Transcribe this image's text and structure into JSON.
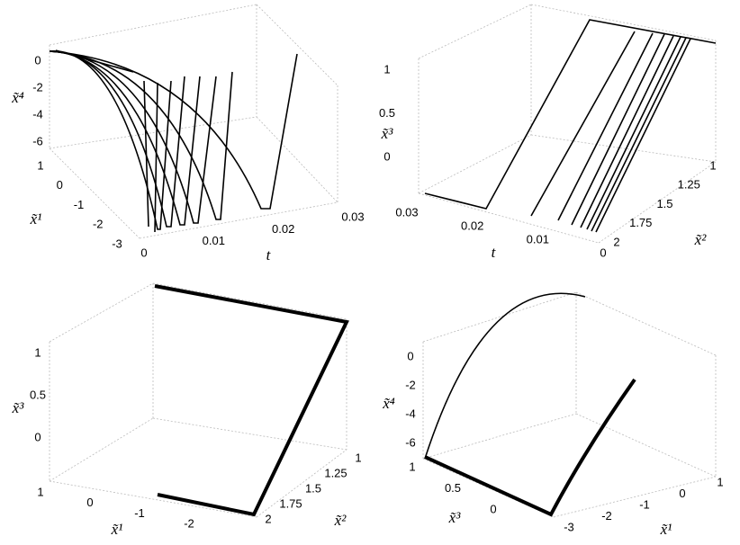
{
  "chart_data": [
    {
      "type": "line3d",
      "xlabel": "t",
      "xticks": [
        0,
        0.01,
        0.02,
        0.03
      ],
      "ylabel": "x̃¹",
      "yticks": [
        1,
        0,
        -1,
        -2,
        -3
      ],
      "zlabel": "x̃⁴",
      "zticks": [
        0,
        -2,
        -4,
        -6
      ]
    },
    {
      "type": "line3d",
      "xlabel": "t",
      "xticks": [
        0.03,
        0.02,
        0.01,
        0
      ],
      "ylabel": "x̃²",
      "yticks": [
        1,
        1.25,
        1.5,
        1.75,
        2
      ],
      "zlabel": "x̃³",
      "zticks": [
        1,
        0.5,
        0
      ]
    },
    {
      "type": "line3d",
      "xlabel": "x̃¹",
      "xticks": [
        1,
        0,
        -1,
        -2
      ],
      "ylabel": "x̃²",
      "yticks": [
        1,
        1.25,
        1.5,
        1.75,
        2
      ],
      "zlabel": "x̃³",
      "zticks": [
        1,
        0.5,
        0
      ]
    },
    {
      "type": "line3d",
      "xlabel": "x̃³",
      "xticks": [
        1,
        0.5,
        0
      ],
      "ylabel": "x̃¹",
      "yticks": [
        -3,
        -2,
        -1,
        0,
        1
      ],
      "zlabel": "x̃⁴",
      "zticks": [
        0,
        -2,
        -4,
        -6
      ]
    }
  ]
}
